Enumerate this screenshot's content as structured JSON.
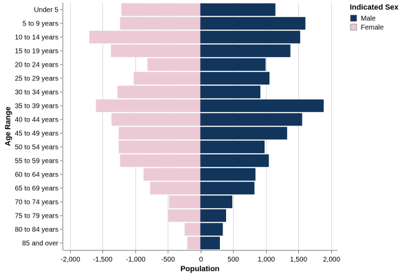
{
  "chart_data": {
    "type": "bar",
    "orientation": "horizontal",
    "layout": "population-pyramid",
    "title": "",
    "xlabel": "Population",
    "ylabel": "Age Range",
    "xlim": [
      -2100,
      2100
    ],
    "xticks": [
      -2000,
      -1500,
      -1000,
      -500,
      0,
      500,
      1000,
      1500,
      2000
    ],
    "xtick_labels": [
      "-2,000",
      "-1,500",
      "-1,000",
      "-500",
      "0",
      "500",
      "1,000",
      "1,500",
      "2,000"
    ],
    "grid": true,
    "legend": {
      "title": "Indicated Sex",
      "position": "top-right"
    },
    "categories": [
      "Under 5",
      "5 to 9 years",
      "10 to 14 years",
      "15 to 19 years",
      "20 to 24 years",
      "25 to 29 years",
      "30 to 34 years",
      "35 to 39 years",
      "40 to 44 years",
      "45 to 49 years",
      "50 to 54 years",
      "55 to 59 years",
      "60 to 64 years",
      "65 to 69 years",
      "70 to 74 years",
      "75 to 79 years",
      "80 to 84 years",
      "85 and over"
    ],
    "series": [
      {
        "name": "Male",
        "color": "#12355b",
        "values": [
          1150,
          1610,
          1530,
          1380,
          1000,
          1060,
          920,
          1890,
          1560,
          1330,
          985,
          1050,
          845,
          830,
          490,
          395,
          345,
          300
        ]
      },
      {
        "name": "Female",
        "color": "#ebcad6",
        "values": [
          -1210,
          -1230,
          -1700,
          -1370,
          -810,
          -1020,
          -1270,
          -1600,
          -1360,
          -1250,
          -1250,
          -1230,
          -870,
          -770,
          -480,
          -490,
          -240,
          -200
        ]
      }
    ]
  }
}
